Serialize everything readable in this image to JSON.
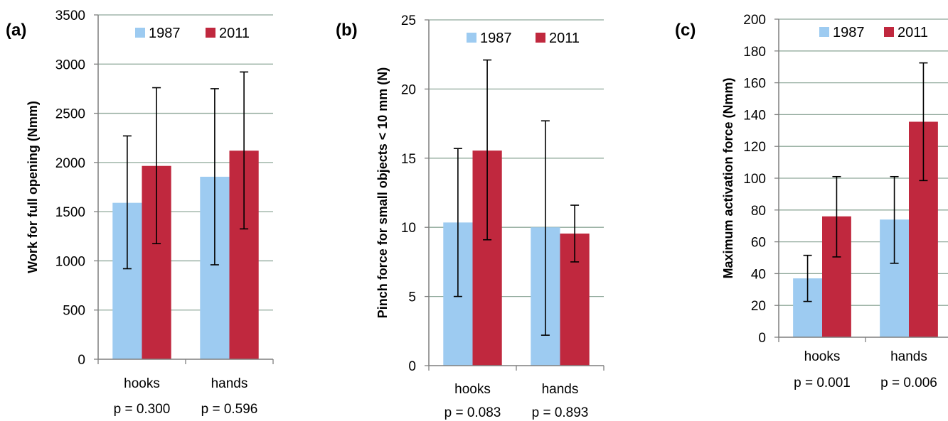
{
  "colors": {
    "1987": "#9dcbf1",
    "2011": "#c0283e",
    "grid": "#8fa89a",
    "axis": "#7f7f7f",
    "errorbar": "#000000"
  },
  "chart_data": [
    {
      "type": "bar",
      "panel_label": "(a)",
      "ylabel": "Work for full opening (Nmm)",
      "ylim": [
        0,
        3500
      ],
      "yticks": [
        "0",
        "500",
        "1000",
        "1500",
        "2000",
        "2500",
        "3000",
        "3500"
      ],
      "categories": [
        "hooks",
        "hands"
      ],
      "pvalues": [
        "p = 0.300",
        "p = 0.596"
      ],
      "legend_position": "top",
      "series": [
        {
          "name": "1987",
          "values": [
            1590,
            1855
          ],
          "err_low": [
            920,
            960
          ],
          "err_high": [
            2270,
            2750
          ]
        },
        {
          "name": "2011",
          "values": [
            1965,
            2120
          ],
          "err_low": [
            1175,
            1325
          ],
          "err_high": [
            2760,
            2920
          ]
        }
      ]
    },
    {
      "type": "bar",
      "panel_label": "(b)",
      "ylabel": "Pinch force for small objects < 10 mm (N)",
      "ylim": [
        0,
        25
      ],
      "yticks": [
        "0",
        "5",
        "10",
        "15",
        "20",
        "25"
      ],
      "categories": [
        "hooks",
        "hands"
      ],
      "pvalues": [
        "p = 0.083",
        "p = 0.893"
      ],
      "legend_position": "top",
      "series": [
        {
          "name": "1987",
          "values": [
            10.35,
            10.0
          ],
          "err_low": [
            5.0,
            2.2
          ],
          "err_high": [
            15.7,
            17.7
          ]
        },
        {
          "name": "2011",
          "values": [
            15.55,
            9.55
          ],
          "err_low": [
            9.1,
            7.5
          ],
          "err_high": [
            22.1,
            11.6
          ]
        }
      ]
    },
    {
      "type": "bar",
      "panel_label": "(c)",
      "ylabel": "Maximum activation force (Nmm)",
      "ylim": [
        0,
        200
      ],
      "yticks": [
        "0",
        "20",
        "40",
        "60",
        "80",
        "100",
        "120",
        "140",
        "160",
        "180",
        "200"
      ],
      "categories": [
        "hooks",
        "hands"
      ],
      "pvalues": [
        "p = 0.001",
        "p = 0.006"
      ],
      "legend_position": "top",
      "series": [
        {
          "name": "1987",
          "values": [
            37,
            74
          ],
          "err_low": [
            22.5,
            46.5
          ],
          "err_high": [
            51.5,
            101
          ]
        },
        {
          "name": "2011",
          "values": [
            76,
            135.5
          ],
          "err_low": [
            50.5,
            98.5
          ],
          "err_high": [
            101,
            172.5
          ]
        }
      ]
    }
  ]
}
